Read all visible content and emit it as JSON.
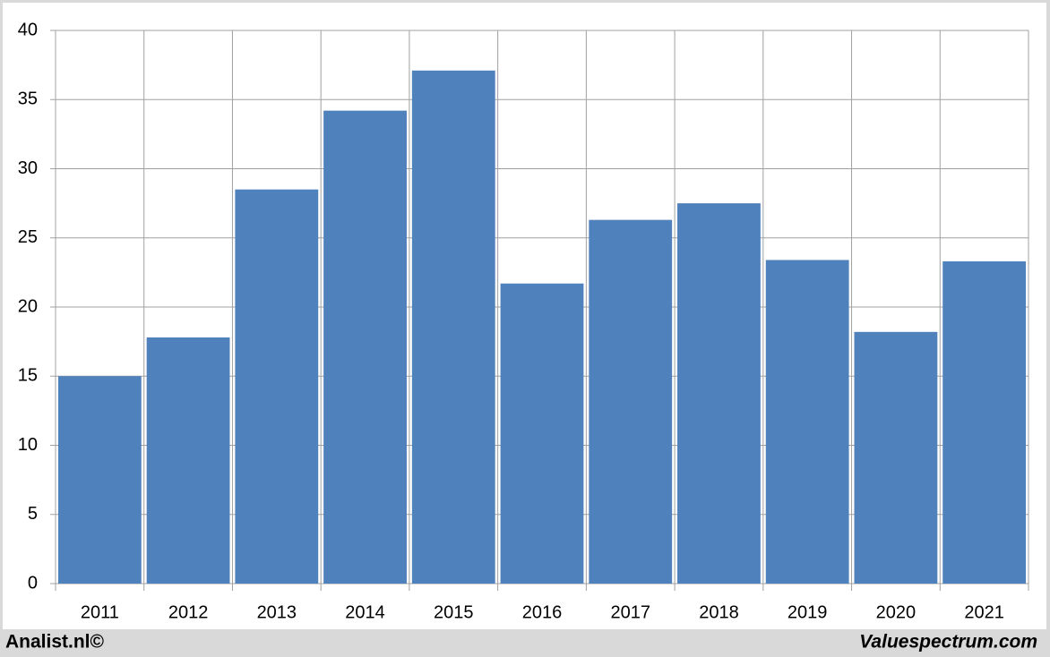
{
  "chart_data": {
    "type": "bar",
    "categories": [
      "2011",
      "2012",
      "2013",
      "2014",
      "2015",
      "2016",
      "2017",
      "2018",
      "2019",
      "2020",
      "2021"
    ],
    "values": [
      15.0,
      17.8,
      28.5,
      34.2,
      37.1,
      21.7,
      26.3,
      27.5,
      23.4,
      18.2,
      23.3
    ],
    "color": "#4f81bd",
    "ylim": [
      0,
      40
    ],
    "yticks": [
      0,
      5,
      10,
      15,
      20,
      25,
      30,
      35,
      40
    ],
    "grid": true,
    "annotations": [
      "Analist.nl©",
      "Valuespectrum.com"
    ]
  }
}
